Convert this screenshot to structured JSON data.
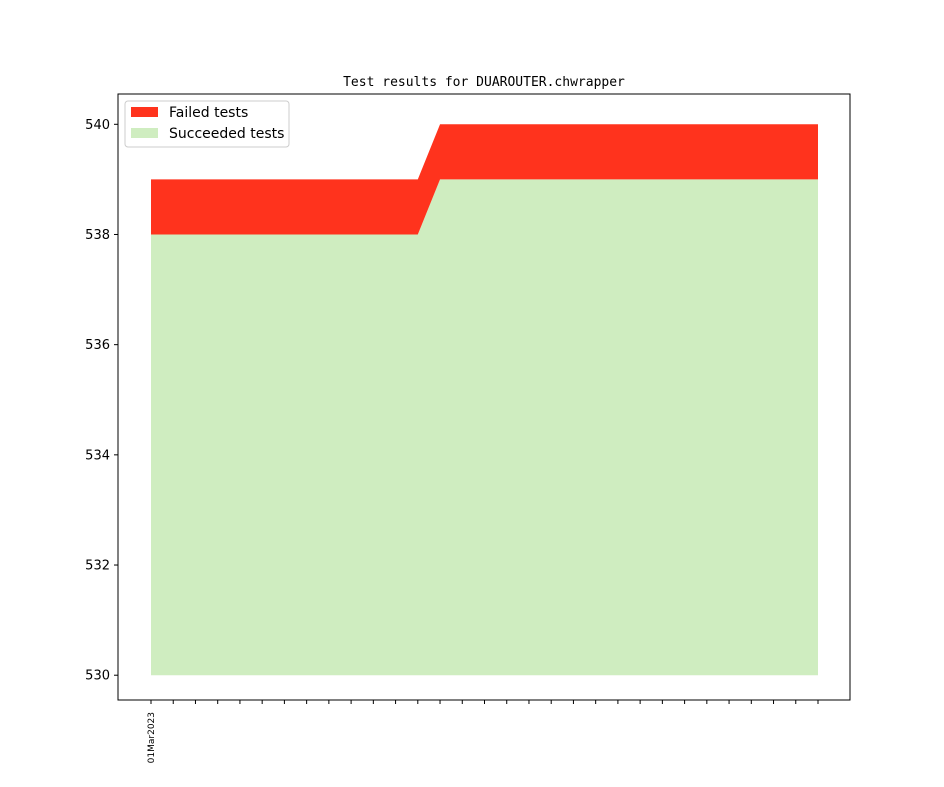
{
  "chart_data": {
    "type": "area",
    "title": "Test results for DUAROUTER.chwrapper",
    "xlabel": "",
    "ylabel": "",
    "x_start_label": "01Mar2023",
    "x_tick_count": 31,
    "ylim": [
      529.55,
      540.55
    ],
    "y_ticks": [
      530,
      532,
      534,
      536,
      538,
      540
    ],
    "legend_position": "upper-left",
    "grid": false,
    "series": [
      {
        "name": "Failed tests",
        "color": "#ff331d",
        "lower": [
          538,
          538,
          538,
          538,
          538,
          538,
          538,
          538,
          538,
          538,
          538,
          538,
          538,
          539,
          539,
          539,
          539,
          539,
          539,
          539,
          539,
          539,
          539,
          539,
          539,
          539,
          539,
          539,
          539,
          539,
          539
        ],
        "upper": [
          539,
          539,
          539,
          539,
          539,
          539,
          539,
          539,
          539,
          539,
          539,
          539,
          539,
          540,
          540,
          540,
          540,
          540,
          540,
          540,
          540,
          540,
          540,
          540,
          540,
          540,
          540,
          540,
          540,
          540,
          540
        ]
      },
      {
        "name": "Succeeded tests",
        "color": "#cfedc0",
        "lower": [
          530,
          530,
          530,
          530,
          530,
          530,
          530,
          530,
          530,
          530,
          530,
          530,
          530,
          530,
          530,
          530,
          530,
          530,
          530,
          530,
          530,
          530,
          530,
          530,
          530,
          530,
          530,
          530,
          530,
          530,
          530
        ],
        "upper": [
          538,
          538,
          538,
          538,
          538,
          538,
          538,
          538,
          538,
          538,
          538,
          538,
          538,
          539,
          539,
          539,
          539,
          539,
          539,
          539,
          539,
          539,
          539,
          539,
          539,
          539,
          539,
          539,
          539,
          539,
          539
        ]
      }
    ]
  }
}
